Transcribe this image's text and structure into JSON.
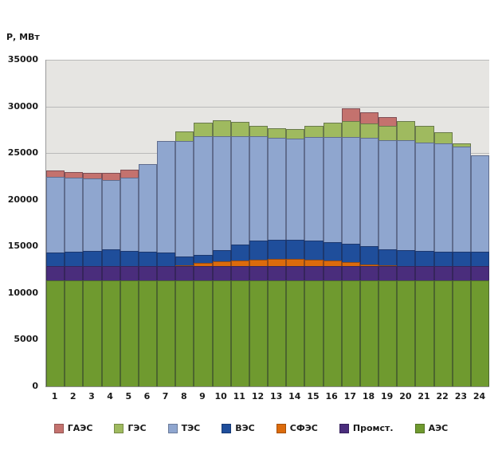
{
  "chart_data": {
    "type": "bar",
    "stacked": true,
    "title": "",
    "ylabel": "Р, МВт",
    "xlabel": "",
    "ylim": [
      0,
      35000
    ],
    "ytick_step": 5000,
    "yticks": [
      0,
      5000,
      10000,
      15000,
      20000,
      25000,
      30000,
      35000
    ],
    "grid": true,
    "plot_bg": "#e6e5e2",
    "gridline_color": "#b9b9b9",
    "legend_position": "bottom",
    "categories": [
      "1",
      "2",
      "3",
      "4",
      "5",
      "6",
      "7",
      "8",
      "9",
      "10",
      "11",
      "12",
      "13",
      "14",
      "15",
      "16",
      "17",
      "18",
      "19",
      "20",
      "21",
      "22",
      "23",
      "24"
    ],
    "series": [
      {
        "name": "АЭС",
        "color": "#6f9a2f",
        "values": [
          11350,
          11350,
          11350,
          11350,
          11350,
          11350,
          11350,
          11350,
          11350,
          11350,
          11350,
          11350,
          11350,
          11350,
          11350,
          11350,
          11350,
          11350,
          11350,
          11350,
          11350,
          11350,
          11350,
          11350
        ]
      },
      {
        "name": "Промст.",
        "color": "#4a2d7c",
        "values": [
          1550,
          1550,
          1550,
          1550,
          1550,
          1550,
          1550,
          1550,
          1550,
          1550,
          1550,
          1550,
          1550,
          1550,
          1550,
          1550,
          1550,
          1550,
          1550,
          1550,
          1550,
          1550,
          1550,
          1550
        ]
      },
      {
        "name": "СФЭС",
        "color": "#dc6b0c",
        "values": [
          0,
          0,
          0,
          0,
          0,
          0,
          0,
          100,
          300,
          500,
          600,
          700,
          800,
          800,
          700,
          600,
          400,
          200,
          100,
          0,
          0,
          0,
          0,
          0
        ]
      },
      {
        "name": "ВЭС",
        "color": "#1f4e9b",
        "values": [
          1450,
          1500,
          1600,
          1750,
          1600,
          1500,
          1450,
          950,
          850,
          1200,
          1700,
          2000,
          2000,
          2000,
          2000,
          1950,
          1950,
          1900,
          1700,
          1700,
          1600,
          1550,
          1550,
          1500
        ]
      },
      {
        "name": "ТЭС",
        "color": "#8fa6cf",
        "values": [
          8100,
          7950,
          7750,
          7500,
          7900,
          9400,
          11950,
          12350,
          12750,
          12200,
          11600,
          11200,
          10900,
          10850,
          11100,
          11250,
          11500,
          11600,
          11700,
          11800,
          11650,
          11550,
          11250,
          10350
        ]
      },
      {
        "name": "ГЭС",
        "color": "#9fba5f",
        "values": [
          0,
          0,
          0,
          0,
          0,
          0,
          0,
          1000,
          1500,
          1700,
          1550,
          1100,
          1050,
          1000,
          1200,
          1600,
          1700,
          1550,
          1500,
          2000,
          1750,
          1200,
          300,
          0
        ]
      },
      {
        "name": "ГАЭС",
        "color": "#c4726e",
        "values": [
          650,
          650,
          650,
          700,
          800,
          0,
          0,
          0,
          0,
          0,
          0,
          0,
          0,
          0,
          0,
          0,
          1350,
          1250,
          1000,
          0,
          0,
          0,
          0,
          0
        ]
      }
    ],
    "legend": [
      "ГАЭС",
      "ГЭС",
      "ТЭС",
      "ВЭС",
      "СФЭС",
      "Промст.",
      "АЭС"
    ]
  }
}
